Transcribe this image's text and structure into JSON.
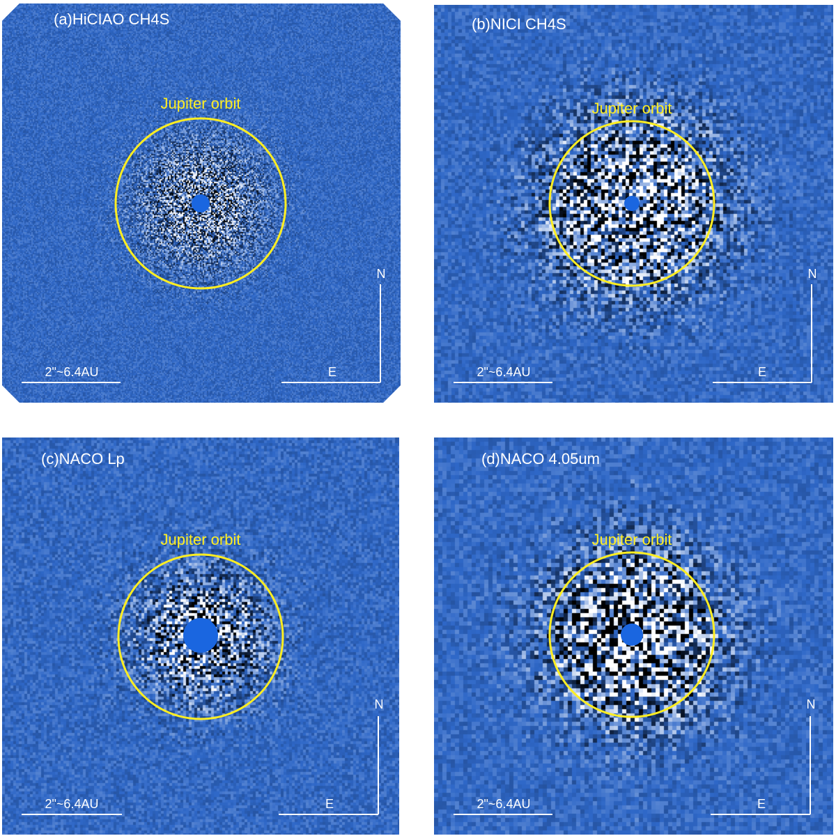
{
  "panels": [
    {
      "id": "a",
      "title": "(a)HiCIAO CH4S",
      "orbit_label": "Jupiter orbit",
      "scale_label": "2\"~6.4AU",
      "north_label": "N",
      "east_label": "E"
    },
    {
      "id": "b",
      "title": "(b)NICI CH4S",
      "orbit_label": "Jupiter orbit",
      "scale_label": "2\"~6.4AU",
      "north_label": "N",
      "east_label": "E"
    },
    {
      "id": "c",
      "title": "(c)NACO Lp",
      "orbit_label": "Jupiter orbit",
      "scale_label": "2\"~6.4AU",
      "north_label": "N",
      "east_label": "E"
    },
    {
      "id": "d",
      "title": "(d)NACO 4.05um",
      "orbit_label": "Jupiter orbit",
      "scale_label": "2\"~6.4AU",
      "north_label": "N",
      "east_label": "E"
    }
  ],
  "colors": {
    "background": "#2f68c8",
    "orbit": "#ffee22",
    "mask": "#1a66e0",
    "text": "#ffffff"
  }
}
